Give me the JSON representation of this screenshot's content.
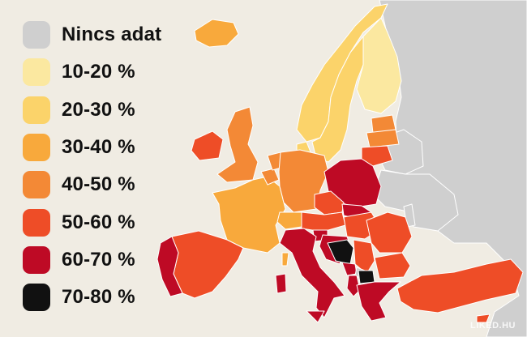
{
  "legend": {
    "items": [
      {
        "label": "Nincs adat",
        "color": "#cfcfcf"
      },
      {
        "label": "10-20 %",
        "color": "#fbe8a0"
      },
      {
        "label": "20-30 %",
        "color": "#fbd36a"
      },
      {
        "label": "30-40 %",
        "color": "#f8a93c"
      },
      {
        "label": "40-50 %",
        "color": "#f38936"
      },
      {
        "label": "50-60 %",
        "color": "#ee4d27"
      },
      {
        "label": "60-70 %",
        "color": "#be0a25"
      },
      {
        "label": "70-80 %",
        "color": "#111111"
      }
    ]
  },
  "map": {
    "background_color": "#f0ece3",
    "no_data_color": "#cfcfcf",
    "regions": [
      {
        "name": "russia",
        "level": "Nincs adat"
      },
      {
        "name": "belarus",
        "level": "Nincs adat"
      },
      {
        "name": "ukraine",
        "level": "Nincs adat"
      },
      {
        "name": "iceland",
        "level": "30-40 %"
      },
      {
        "name": "norway",
        "level": "20-30 %"
      },
      {
        "name": "sweden",
        "level": "20-30 %"
      },
      {
        "name": "finland",
        "level": "10-20 %"
      },
      {
        "name": "denmark",
        "level": "20-30 %"
      },
      {
        "name": "estonia",
        "level": "40-50 %"
      },
      {
        "name": "latvia",
        "level": "40-50 %"
      },
      {
        "name": "lithuania",
        "level": "50-60 %"
      },
      {
        "name": "ireland",
        "level": "50-60 %"
      },
      {
        "name": "united-kingdom",
        "level": "40-50 %"
      },
      {
        "name": "france",
        "level": "30-40 %"
      },
      {
        "name": "spain",
        "level": "50-60 %"
      },
      {
        "name": "portugal",
        "level": "60-70 %"
      },
      {
        "name": "belgium",
        "level": "40-50 %"
      },
      {
        "name": "netherlands",
        "level": "40-50 %"
      },
      {
        "name": "germany",
        "level": "40-50 %"
      },
      {
        "name": "switzerland",
        "level": "30-40 %"
      },
      {
        "name": "austria",
        "level": "50-60 %"
      },
      {
        "name": "czechia",
        "level": "50-60 %"
      },
      {
        "name": "poland",
        "level": "60-70 %"
      },
      {
        "name": "slovakia",
        "level": "60-70 %"
      },
      {
        "name": "hungary",
        "level": "50-60 %"
      },
      {
        "name": "slovenia",
        "level": "60-70 %"
      },
      {
        "name": "croatia",
        "level": "60-70 %"
      },
      {
        "name": "bosnia",
        "level": "70-80 %"
      },
      {
        "name": "serbia",
        "level": "50-60 %"
      },
      {
        "name": "montenegro",
        "level": "60-70 %"
      },
      {
        "name": "albania",
        "level": "60-70 %"
      },
      {
        "name": "north-macedonia",
        "level": "70-80 %"
      },
      {
        "name": "kosovo",
        "level": "Nincs adat"
      },
      {
        "name": "romania",
        "level": "50-60 %"
      },
      {
        "name": "moldova",
        "level": "Nincs adat"
      },
      {
        "name": "bulgaria",
        "level": "50-60 %"
      },
      {
        "name": "greece",
        "level": "60-70 %"
      },
      {
        "name": "italy",
        "level": "60-70 %"
      },
      {
        "name": "sardinia",
        "level": "60-70 %"
      },
      {
        "name": "sicily",
        "level": "60-70 %"
      },
      {
        "name": "corsica",
        "level": "30-40 %"
      },
      {
        "name": "turkey",
        "level": "50-60 %"
      },
      {
        "name": "cyprus",
        "level": "50-60 %"
      }
    ]
  },
  "watermark": "LIKED.HU"
}
